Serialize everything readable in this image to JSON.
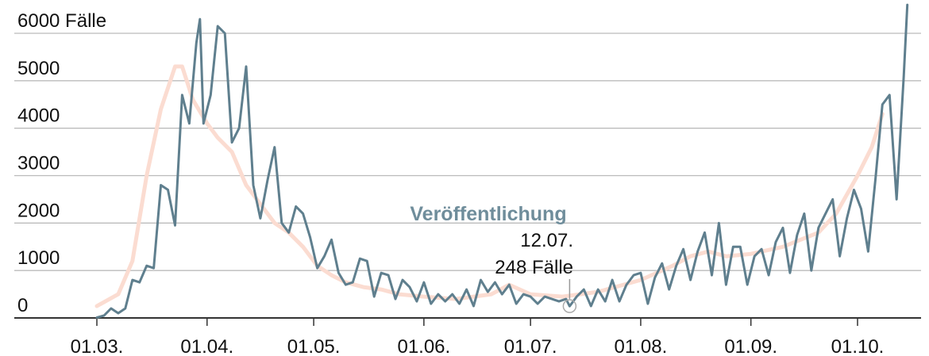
{
  "chart_data": {
    "type": "line",
    "ylim": [
      0,
      6000
    ],
    "yticks": [
      0,
      1000,
      2000,
      3000,
      4000,
      5000,
      {
        "value": 6000,
        "label": "6000 Fälle"
      }
    ],
    "xticks": [
      "01.03.",
      "01.04.",
      "01.05.",
      "01.06.",
      "01.07.",
      "01.08.",
      "01.09.",
      "01.10."
    ],
    "grid": true,
    "series": [
      {
        "color": "#fbdcd1",
        "x": [
          "01.03.",
          "07.03.",
          "11.03.",
          "15.03.",
          "19.03.",
          "23.03.",
          "25.03.",
          "28.03.",
          "01.04.",
          "04.04.",
          "08.04.",
          "12.04.",
          "16.04.",
          "20.04.",
          "24.04.",
          "28.04.",
          "02.05.",
          "06.05.",
          "10.05.",
          "15.05.",
          "20.05.",
          "25.05.",
          "01.06.",
          "10.06.",
          "20.06.",
          "25.06.",
          "01.07.",
          "10.07.",
          "20.07.",
          "01.08.",
          "10.08.",
          "15.08.",
          "20.08.",
          "25.08.",
          "01.09.",
          "10.09.",
          "20.09.",
          "25.09.",
          "01.10.",
          "05.10.",
          "08.10."
        ],
        "values": [
          250,
          500,
          1200,
          3000,
          4400,
          5300,
          5300,
          4600,
          4100,
          3800,
          3500,
          2800,
          2400,
          2000,
          1800,
          1500,
          1100,
          900,
          750,
          650,
          600,
          500,
          450,
          400,
          500,
          700,
          500,
          450,
          550,
          800,
          1100,
          1300,
          1400,
          1300,
          1350,
          1500,
          1800,
          2200,
          3000,
          3600,
          4300
        ]
      },
      {
        "color": "#5f7f8e",
        "x": [
          "01.03.",
          "03.03.",
          "05.03.",
          "07.03.",
          "09.03.",
          "11.03.",
          "13.03.",
          "15.03.",
          "17.03.",
          "19.03.",
          "21.03.",
          "23.03.",
          "25.03.",
          "27.03.",
          "29.03.",
          "30.03.",
          "31.03.",
          "02.04.",
          "04.04.",
          "06.04.",
          "08.04.",
          "10.04.",
          "12.04.",
          "14.04.",
          "16.04.",
          "18.04.",
          "20.04.",
          "22.04.",
          "24.04.",
          "26.04.",
          "28.04.",
          "30.04.",
          "02.05.",
          "04.05.",
          "06.05.",
          "08.05.",
          "10.05.",
          "12.05.",
          "14.05.",
          "16.05.",
          "18.05.",
          "20.05.",
          "22.05.",
          "24.05.",
          "26.05.",
          "28.05.",
          "30.05.",
          "01.06.",
          "03.06.",
          "05.06.",
          "07.06.",
          "09.06.",
          "11.06.",
          "13.06.",
          "15.06.",
          "17.06.",
          "19.06.",
          "21.06.",
          "23.06.",
          "25.06.",
          "27.06.",
          "29.06.",
          "01.07.",
          "03.07.",
          "05.07.",
          "07.07.",
          "09.07.",
          "11.07.",
          "12.07.",
          "14.07.",
          "16.07.",
          "18.07.",
          "20.07.",
          "22.07.",
          "24.07.",
          "26.07.",
          "28.07.",
          "30.07.",
          "01.08.",
          "03.08.",
          "05.08.",
          "07.08.",
          "09.08.",
          "11.08.",
          "13.08.",
          "15.08.",
          "17.08.",
          "19.08.",
          "21.08.",
          "23.08.",
          "25.08.",
          "27.08.",
          "29.08.",
          "31.08.",
          "02.09.",
          "04.09.",
          "06.09.",
          "08.09.",
          "10.09.",
          "12.09.",
          "14.09.",
          "16.09.",
          "18.09.",
          "20.09.",
          "22.09.",
          "24.09.",
          "26.09.",
          "28.09.",
          "30.09.",
          "02.10.",
          "04.10.",
          "06.10.",
          "08.10.",
          "10.10.",
          "12.10.",
          "14.10.",
          "15.10."
        ],
        "values": [
          10,
          50,
          200,
          100,
          200,
          800,
          750,
          1100,
          1050,
          2800,
          2700,
          1950,
          4700,
          4100,
          5800,
          6300,
          4100,
          4700,
          6150,
          6000,
          3700,
          4000,
          5300,
          2800,
          2100,
          2900,
          3600,
          2000,
          1800,
          2350,
          2200,
          1700,
          1050,
          1300,
          1650,
          950,
          700,
          750,
          1250,
          1200,
          450,
          950,
          900,
          400,
          800,
          650,
          350,
          750,
          300,
          500,
          350,
          500,
          300,
          600,
          250,
          800,
          550,
          750,
          500,
          700,
          300,
          500,
          450,
          300,
          450,
          400,
          350,
          400,
          248,
          450,
          600,
          250,
          600,
          350,
          800,
          350,
          700,
          900,
          950,
          300,
          850,
          1150,
          600,
          1100,
          1450,
          800,
          1400,
          1800,
          900,
          2000,
          700,
          1500,
          1500,
          700,
          1300,
          1450,
          900,
          1600,
          1900,
          950,
          1750,
          2200,
          1000,
          1900,
          2200,
          2500,
          1300,
          2100,
          2700,
          2300,
          1400,
          2900,
          4500,
          4700,
          2500,
          5100,
          6600
        ]
      }
    ],
    "annotations": [
      {
        "text": "Veröffentlichung",
        "x": "12.07.",
        "label": "248 Fälle",
        "value": 248
      }
    ]
  }
}
